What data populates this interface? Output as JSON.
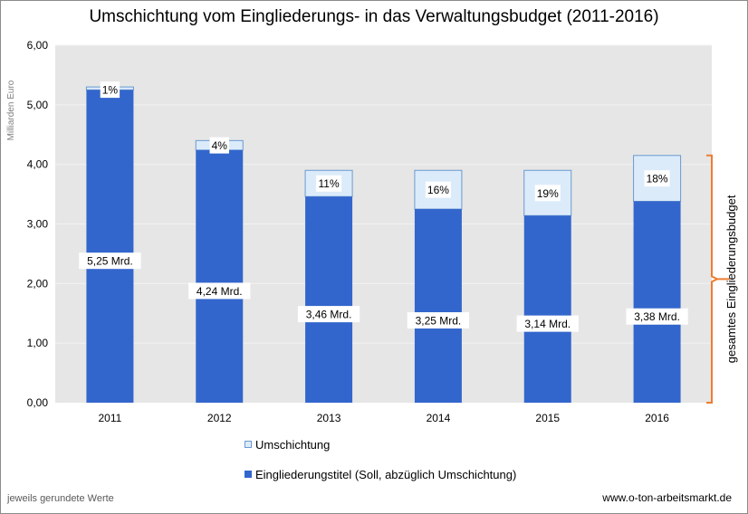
{
  "chart_data": {
    "type": "bar",
    "stacked": true,
    "title": "Umschichtung vom Eingliederungs- in das Verwaltungsbudget (2011-2016)",
    "ylabel": "Milliarden Euro",
    "xlabel": "",
    "ylim": [
      0,
      6
    ],
    "yticks": [
      "0,00",
      "1,00",
      "2,00",
      "3,00",
      "4,00",
      "5,00",
      "6,00"
    ],
    "grid": true,
    "legend_position": "bottom",
    "categories": [
      "2011",
      "2012",
      "2013",
      "2014",
      "2015",
      "2016"
    ],
    "series": [
      {
        "name": "Eingliederungstitel (Soll, abzüglich Umschichtung)",
        "color": "#3366cc",
        "values": [
          5.25,
          4.24,
          3.46,
          3.25,
          3.14,
          3.38
        ],
        "labels": [
          "5,25 Mrd.",
          "4,24 Mrd.",
          "3,46 Mrd.",
          "3,25 Mrd.",
          "3,14 Mrd.",
          "3,38 Mrd."
        ]
      },
      {
        "name": "Umschichtung",
        "color": "#dcebfa",
        "values": [
          0.05,
          0.16,
          0.44,
          0.65,
          0.76,
          0.77
        ],
        "labels": [
          "1%",
          "4%",
          "11%",
          "16%",
          "19%",
          "18%"
        ]
      }
    ],
    "annotation": "gesamtes Eingliederungsbudget",
    "footnote": "jeweils gerundete Werte",
    "source": "www.o-ton-arbeitsmarkt.de"
  },
  "colors": {
    "plot_background": "#e6e6e6",
    "bar_dark": "#3366cc",
    "bar_light": "#dcebfa",
    "bar_light_border": "#6a9ad0",
    "brace": "#ed7d31",
    "gridline": "#f2f2f2"
  }
}
